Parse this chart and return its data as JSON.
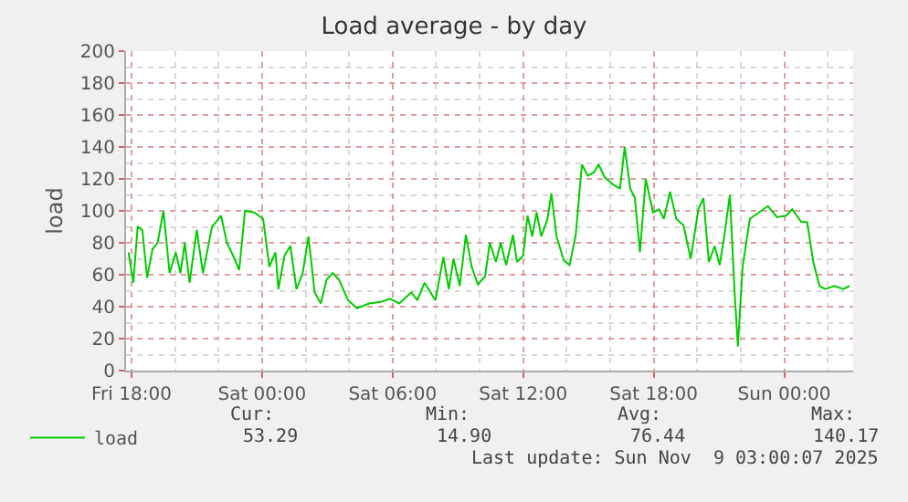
{
  "chart_data": {
    "type": "line",
    "title": "Load average - by day",
    "ylabel": "load",
    "x": [
      "2025-11-07T17:52",
      "2025-11-07T18:05",
      "2025-11-07T18:17",
      "2025-11-07T18:30",
      "2025-11-07T18:43",
      "2025-11-07T18:58",
      "2025-11-07T19:12",
      "2025-11-07T19:28",
      "2025-11-07T19:45",
      "2025-11-07T20:02",
      "2025-11-07T20:15",
      "2025-11-07T20:27",
      "2025-11-07T20:40",
      "2025-11-07T21:00",
      "2025-11-07T21:17",
      "2025-11-07T21:42",
      "2025-11-07T22:07",
      "2025-11-07T22:23",
      "2025-11-07T22:40",
      "2025-11-07T22:57",
      "2025-11-07T23:13",
      "2025-11-07T23:38",
      "2025-11-08T00:03",
      "2025-11-08T00:20",
      "2025-11-08T00:37",
      "2025-11-08T00:45",
      "2025-11-08T01:02",
      "2025-11-08T01:18",
      "2025-11-08T01:35",
      "2025-11-08T01:52",
      "2025-11-08T02:08",
      "2025-11-08T02:25",
      "2025-11-08T02:42",
      "2025-11-08T02:58",
      "2025-11-08T03:15",
      "2025-11-08T03:32",
      "2025-11-08T03:57",
      "2025-11-08T04:22",
      "2025-11-08T04:55",
      "2025-11-08T05:28",
      "2025-11-08T05:53",
      "2025-11-08T06:18",
      "2025-11-08T06:52",
      "2025-11-08T07:08",
      "2025-11-08T07:28",
      "2025-11-08T07:58",
      "2025-11-08T08:20",
      "2025-11-08T08:35",
      "2025-11-08T08:48",
      "2025-11-08T09:05",
      "2025-11-08T09:22",
      "2025-11-08T09:38",
      "2025-11-08T09:55",
      "2025-11-08T10:15",
      "2025-11-08T10:28",
      "2025-11-08T10:45",
      "2025-11-08T10:58",
      "2025-11-08T11:13",
      "2025-11-08T11:32",
      "2025-11-08T11:43",
      "2025-11-08T12:00",
      "2025-11-08T12:12",
      "2025-11-08T12:25",
      "2025-11-08T12:37",
      "2025-11-08T12:50",
      "2025-11-08T13:07",
      "2025-11-08T13:18",
      "2025-11-08T13:32",
      "2025-11-08T13:52",
      "2025-11-08T14:08",
      "2025-11-08T14:25",
      "2025-11-08T14:42",
      "2025-11-08T14:58",
      "2025-11-08T15:15",
      "2025-11-08T15:28",
      "2025-11-08T15:45",
      "2025-11-08T16:10",
      "2025-11-08T16:27",
      "2025-11-08T16:40",
      "2025-11-08T16:55",
      "2025-11-08T17:08",
      "2025-11-08T17:22",
      "2025-11-08T17:38",
      "2025-11-08T17:58",
      "2025-11-08T18:15",
      "2025-11-08T18:28",
      "2025-11-08T18:45",
      "2025-11-08T19:02",
      "2025-11-08T19:22",
      "2025-11-08T19:42",
      "2025-11-08T20:03",
      "2025-11-08T20:17",
      "2025-11-08T20:32",
      "2025-11-08T20:48",
      "2025-11-08T21:02",
      "2025-11-08T21:15",
      "2025-11-08T21:30",
      "2025-11-08T21:43",
      "2025-11-08T21:52",
      "2025-11-08T22:05",
      "2025-11-08T22:25",
      "2025-11-08T22:50",
      "2025-11-08T23:15",
      "2025-11-08T23:40",
      "2025-11-09T00:05",
      "2025-11-09T00:22",
      "2025-11-09T00:47",
      "2025-11-09T01:03",
      "2025-11-09T01:20",
      "2025-11-09T01:37",
      "2025-11-09T01:53",
      "2025-11-09T02:18",
      "2025-11-09T02:43",
      "2025-11-09T03:00"
    ],
    "series": [
      {
        "name": "load",
        "color": "#00cc00",
        "values": [
          74,
          55,
          90,
          88,
          58,
          76,
          80,
          100,
          61,
          74,
          61,
          80,
          55,
          88,
          61,
          90,
          97,
          80,
          72,
          63,
          100,
          99,
          95,
          65,
          74,
          51,
          72,
          78,
          51,
          61,
          84,
          49,
          42,
          57,
          61,
          57,
          44,
          39,
          42,
          43,
          45,
          42,
          49,
          44,
          55,
          44,
          71,
          51,
          70,
          53,
          85,
          65,
          54,
          59,
          80,
          68,
          80,
          66,
          85,
          68,
          72,
          97,
          84,
          99,
          84,
          95,
          111,
          84,
          69,
          66,
          85,
          129,
          122,
          124,
          129,
          121,
          116,
          114,
          140,
          114,
          108,
          74,
          120,
          99,
          101,
          95,
          112,
          95,
          91,
          70,
          101,
          108,
          68,
          78,
          66,
          85,
          110,
          49,
          15,
          65,
          95,
          99,
          103,
          96,
          97,
          101,
          93,
          93,
          68,
          53,
          51,
          53,
          51,
          53
        ]
      }
    ],
    "xlim": [
      "2025-11-07T17:45",
      "2025-11-09T03:10"
    ],
    "xticks": [
      {
        "value": "2025-11-07T18:00",
        "label": "Fri 18:00"
      },
      {
        "value": "2025-11-08T00:00",
        "label": "Sat 00:00"
      },
      {
        "value": "2025-11-08T06:00",
        "label": "Sat 06:00"
      },
      {
        "value": "2025-11-08T12:00",
        "label": "Sat 12:00"
      },
      {
        "value": "2025-11-08T18:00",
        "label": "Sat 18:00"
      },
      {
        "value": "2025-11-09T00:00",
        "label": "Sun 00:00"
      }
    ],
    "ylim": [
      0,
      200
    ],
    "yticks": [
      0,
      20,
      40,
      60,
      80,
      100,
      120,
      140,
      160,
      180,
      200
    ],
    "grid": true,
    "legend": "bottom left",
    "line_style": "solid",
    "annotations": [
      "Cur:",
      "Min:",
      "Avg:",
      "Max:",
      "53.29",
      "14.90",
      "76.44",
      "140.17",
      "Last update: Sun Nov  9 03:00:07 2025"
    ]
  }
}
